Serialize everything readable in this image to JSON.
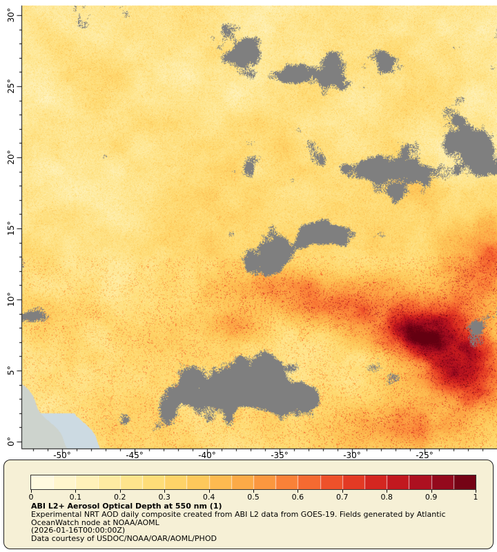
{
  "figure": {
    "axes": {
      "lat_labels": [
        "30°",
        "25°",
        "20°",
        "15°",
        "10°",
        "5°",
        "0°"
      ],
      "lon_labels": [
        "-50°",
        "-45°",
        "-40°",
        "-35°",
        "-30°",
        "-25°"
      ],
      "lat_ticks": [
        30,
        25,
        20,
        15,
        10,
        5,
        0
      ],
      "lon_ticks": [
        -50,
        -45,
        -40,
        -35,
        -30,
        -25
      ],
      "lon_range": [
        -52.76,
        -20.0
      ],
      "lat_range": [
        -0.49,
        30.68
      ]
    },
    "colors": {
      "no_data_gray": "#7f7f7f",
      "land": "#cdd3cd",
      "coastal_water": "#ccdae2",
      "legend_background": "#f6f0d6",
      "axis": "#000000"
    }
  },
  "legend": {
    "ticks": [
      "0",
      "0.1",
      "0.2",
      "0.3",
      "0.4",
      "0.5",
      "0.6",
      "0.7",
      "0.8",
      "0.9",
      "1"
    ],
    "colormap": [
      "#fffce8",
      "#fff4c4",
      "#fee896",
      "#fed96e",
      "#fdc254",
      "#fca243",
      "#f97634",
      "#ea4426",
      "#cc1c1e",
      "#a30c20",
      "#650011"
    ],
    "title": "ABI L2+ Aerosol Optical Depth at 550 nm (1)",
    "description_line1": "Experimental NRT AOD daily composite created from ABI L2 data from GOES-19. Fields generated by Atlantic",
    "description_line2": "OceanWatch node at NOAA/AOML",
    "timestamp": "(2026-01-16T00:00:00Z)",
    "courtesy": "Data courtesy of USDOC/NOAA/OAR/AOML/PHOD"
  },
  "chart_data": {
    "type": "heatmap",
    "title": "ABI L2+ Aerosol Optical Depth at 550 nm (1)",
    "variable": "Aerosol Optical Depth at 550 nm",
    "value_range": [
      0,
      1
    ],
    "colorbar_ticks": [
      0,
      0.1,
      0.2,
      0.3,
      0.4,
      0.5,
      0.6,
      0.7,
      0.8,
      0.9,
      1
    ],
    "x_ticks": [
      -50,
      -45,
      -40,
      -35,
      -30,
      -25
    ],
    "y_ticks": [
      30,
      25,
      20,
      15,
      10,
      5,
      0
    ],
    "x_range": [
      -52.8,
      -20.0
    ],
    "y_range": [
      -0.5,
      30.7
    ],
    "legend_position": "bottom",
    "no_data_color": "#7f7f7f",
    "notable_features": [
      "Dense Saharan dust plume (AOD 0.7-1.0) centered near 5-11N, 30-20W",
      "Moderate AOD 0.2-0.4 across northern tropical Atlantic 15-30N",
      "Gray no-data (cloud) patches scattered across domain",
      "Land mask of northeastern South America in southwest corner"
    ]
  }
}
